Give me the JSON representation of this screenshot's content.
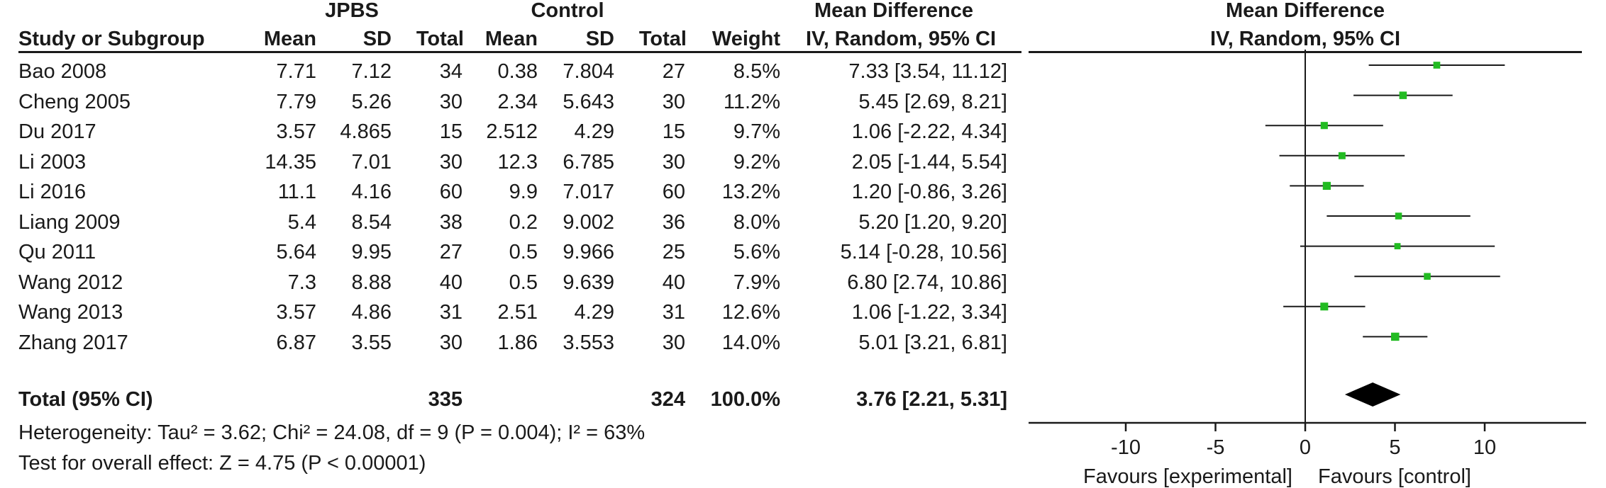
{
  "header": {
    "group1": "JPBS",
    "group2": "Control",
    "effect_title": "Mean Difference",
    "effect_method": "IV, Random, 95% CI",
    "plot_title": "Mean Difference",
    "plot_method": "IV, Random, 95% CI",
    "columns": {
      "study": "Study or Subgroup",
      "mean1": "Mean",
      "sd1": "SD",
      "total1": "Total",
      "mean2": "Mean",
      "sd2": "SD",
      "total2": "Total",
      "weight": "Weight"
    }
  },
  "studies": [
    {
      "name": "Bao 2008",
      "mean1": "7.71",
      "sd1": "7.12",
      "total1": "34",
      "mean2": "0.38",
      "sd2": "7.804",
      "total2": "27",
      "weight": "8.5%",
      "ci_text": "7.33 [3.54, 11.12]"
    },
    {
      "name": "Cheng 2005",
      "mean1": "7.79",
      "sd1": "5.26",
      "total1": "30",
      "mean2": "2.34",
      "sd2": "5.643",
      "total2": "30",
      "weight": "11.2%",
      "ci_text": "5.45 [2.69, 8.21]"
    },
    {
      "name": "Du 2017",
      "mean1": "3.57",
      "sd1": "4.865",
      "total1": "15",
      "mean2": "2.512",
      "sd2": "4.29",
      "total2": "15",
      "weight": "9.7%",
      "ci_text": "1.06 [-2.22, 4.34]"
    },
    {
      "name": "Li 2003",
      "mean1": "14.35",
      "sd1": "7.01",
      "total1": "30",
      "mean2": "12.3",
      "sd2": "6.785",
      "total2": "30",
      "weight": "9.2%",
      "ci_text": "2.05 [-1.44, 5.54]"
    },
    {
      "name": "Li 2016",
      "mean1": "11.1",
      "sd1": "4.16",
      "total1": "60",
      "mean2": "9.9",
      "sd2": "7.017",
      "total2": "60",
      "weight": "13.2%",
      "ci_text": "1.20 [-0.86, 3.26]"
    },
    {
      "name": "Liang 2009",
      "mean1": "5.4",
      "sd1": "8.54",
      "total1": "38",
      "mean2": "0.2",
      "sd2": "9.002",
      "total2": "36",
      "weight": "8.0%",
      "ci_text": "5.20 [1.20, 9.20]"
    },
    {
      "name": "Qu 2011",
      "mean1": "5.64",
      "sd1": "9.95",
      "total1": "27",
      "mean2": "0.5",
      "sd2": "9.966",
      "total2": "25",
      "weight": "5.6%",
      "ci_text": "5.14 [-0.28, 10.56]"
    },
    {
      "name": "Wang 2012",
      "mean1": "7.3",
      "sd1": "8.88",
      "total1": "40",
      "mean2": "0.5",
      "sd2": "9.639",
      "total2": "40",
      "weight": "7.9%",
      "ci_text": "6.80 [2.74, 10.86]"
    },
    {
      "name": "Wang 2013",
      "mean1": "3.57",
      "sd1": "4.86",
      "total1": "31",
      "mean2": "2.51",
      "sd2": "4.29",
      "total2": "31",
      "weight": "12.6%",
      "ci_text": "1.06 [-1.22, 3.34]"
    },
    {
      "name": "Zhang 2017",
      "mean1": "6.87",
      "sd1": "3.55",
      "total1": "30",
      "mean2": "1.86",
      "sd2": "3.553",
      "total2": "30",
      "weight": "14.0%",
      "ci_text": "5.01 [3.21, 6.81]"
    }
  ],
  "total": {
    "label": "Total (95% CI)",
    "total1": "335",
    "total2": "324",
    "weight": "100.0%",
    "ci_text": "3.76 [2.21, 5.31]"
  },
  "heterogeneity": "Heterogeneity: Tau² = 3.62; Chi² = 24.08, df = 9 (P = 0.004); I² = 63%",
  "overall_effect": "Test for overall effect: Z = 4.75 (P < 0.00001)",
  "axis": {
    "favours_left": "Favours [experimental]",
    "favours_right": "Favours [control]"
  },
  "colors": {
    "marker": "#22bb22",
    "diamond": "#000000",
    "line": "#1a1a1a"
  },
  "chart_data": {
    "type": "forest",
    "x_ticks": [
      -10,
      -5,
      0,
      5,
      10
    ],
    "xlim": [
      -15,
      15
    ],
    "null_line": 0,
    "points": [
      {
        "study": "Bao 2008",
        "md": 7.33,
        "lower": 3.54,
        "upper": 11.12,
        "weight": 8.5
      },
      {
        "study": "Cheng 2005",
        "md": 5.45,
        "lower": 2.69,
        "upper": 8.21,
        "weight": 11.2
      },
      {
        "study": "Du 2017",
        "md": 1.06,
        "lower": -2.22,
        "upper": 4.34,
        "weight": 9.7
      },
      {
        "study": "Li 2003",
        "md": 2.05,
        "lower": -1.44,
        "upper": 5.54,
        "weight": 9.2
      },
      {
        "study": "Li 2016",
        "md": 1.2,
        "lower": -0.86,
        "upper": 3.26,
        "weight": 13.2
      },
      {
        "study": "Liang 2009",
        "md": 5.2,
        "lower": 1.2,
        "upper": 9.2,
        "weight": 8.0
      },
      {
        "study": "Qu 2011",
        "md": 5.14,
        "lower": -0.28,
        "upper": 10.56,
        "weight": 5.6
      },
      {
        "study": "Wang 2012",
        "md": 6.8,
        "lower": 2.74,
        "upper": 10.86,
        "weight": 7.9
      },
      {
        "study": "Wang 2013",
        "md": 1.06,
        "lower": -1.22,
        "upper": 3.34,
        "weight": 12.6
      },
      {
        "study": "Zhang 2017",
        "md": 5.01,
        "lower": 3.21,
        "upper": 6.81,
        "weight": 14.0
      }
    ],
    "pooled": {
      "md": 3.76,
      "lower": 2.21,
      "upper": 5.31
    }
  }
}
